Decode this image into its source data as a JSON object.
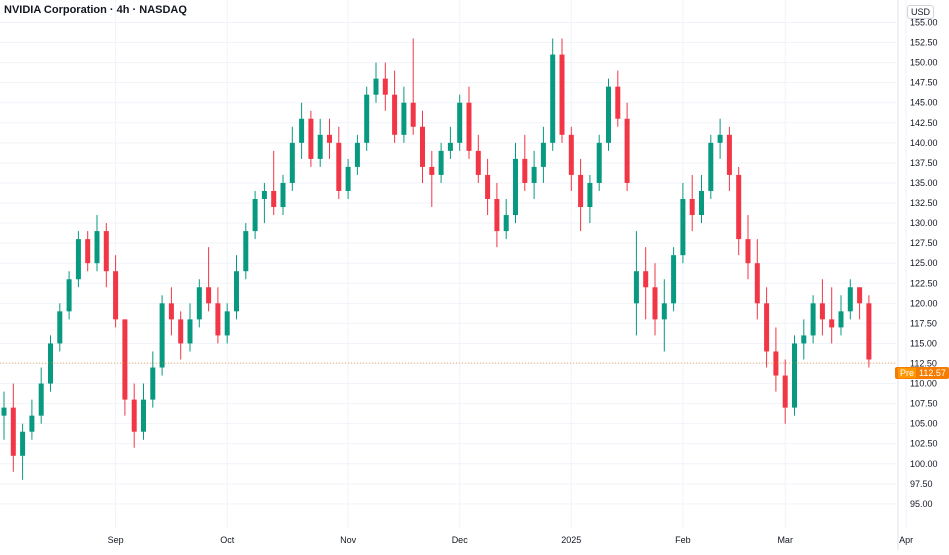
{
  "header": {
    "title": "NVIDIA Corporation · 4h · NASDAQ",
    "currency": "USD"
  },
  "last_price": {
    "session": "Pre",
    "value": "112.57",
    "color": "#f57c00"
  },
  "colors": {
    "up": "#089981",
    "down": "#f23645",
    "grid": "#f0f3fa",
    "axis_text": "#131722"
  },
  "chart_data": {
    "type": "candlestick",
    "title": "NVIDIA Corporation · 4h · NASDAQ",
    "y_axis": {
      "unit": "USD",
      "range": [
        92.0,
        157.8
      ],
      "ticks": [
        "95.00",
        "97.50",
        "100.00",
        "102.50",
        "105.00",
        "107.50",
        "110.00",
        "112.50",
        "115.00",
        "117.50",
        "120.00",
        "122.50",
        "125.00",
        "127.50",
        "130.00",
        "132.50",
        "135.00",
        "137.50",
        "140.00",
        "142.50",
        "145.00",
        "147.50",
        "150.00",
        "152.50",
        "155.00"
      ]
    },
    "x_axis": {
      "ticks": [
        {
          "label": "Sep",
          "index": 12
        },
        {
          "label": "Oct",
          "index": 24
        },
        {
          "label": "Nov",
          "index": 37
        },
        {
          "label": "Dec",
          "index": 49
        },
        {
          "label": "2025",
          "index": 61
        },
        {
          "label": "Feb",
          "index": 73
        },
        {
          "label": "Mar",
          "index": 84
        },
        {
          "label": "Apr",
          "index": 97
        }
      ]
    },
    "grid": true,
    "candles": [
      [
        106,
        109,
        103,
        107
      ],
      [
        107,
        110,
        99,
        101
      ],
      [
        101,
        105,
        98,
        104
      ],
      [
        104,
        108,
        103,
        106
      ],
      [
        106,
        112,
        105,
        110
      ],
      [
        110,
        116,
        109,
        115
      ],
      [
        115,
        120,
        114,
        119
      ],
      [
        119,
        124,
        118,
        123
      ],
      [
        123,
        129,
        122,
        128
      ],
      [
        128,
        129,
        124,
        125
      ],
      [
        125,
        131,
        124,
        129
      ],
      [
        129,
        130,
        122,
        124
      ],
      [
        124,
        126,
        117,
        118
      ],
      [
        118,
        118,
        106,
        108
      ],
      [
        108,
        110,
        102,
        104
      ],
      [
        104,
        110,
        103,
        108
      ],
      [
        108,
        114,
        107,
        112
      ],
      [
        112,
        121,
        111,
        120
      ],
      [
        120,
        122,
        116,
        118
      ],
      [
        118,
        119,
        113,
        115
      ],
      [
        115,
        120,
        114,
        118
      ],
      [
        118,
        123,
        117,
        122
      ],
      [
        122,
        127,
        119,
        120
      ],
      [
        120,
        122,
        115,
        116
      ],
      [
        116,
        120,
        115,
        119
      ],
      [
        119,
        126,
        118,
        124
      ],
      [
        124,
        130,
        123,
        129
      ],
      [
        129,
        134,
        128,
        133
      ],
      [
        133,
        135,
        130,
        134
      ],
      [
        134,
        139,
        131,
        132
      ],
      [
        132,
        136,
        131,
        135
      ],
      [
        135,
        142,
        134,
        140
      ],
      [
        140,
        145,
        138,
        143
      ],
      [
        143,
        144,
        137,
        138
      ],
      [
        138,
        143,
        137,
        141
      ],
      [
        141,
        143,
        138,
        140
      ],
      [
        140,
        142,
        133,
        134
      ],
      [
        134,
        138,
        133,
        137
      ],
      [
        137,
        141,
        136,
        140
      ],
      [
        140,
        147,
        139,
        146
      ],
      [
        146,
        150,
        145,
        148
      ],
      [
        148,
        150,
        144,
        146
      ],
      [
        146,
        149,
        140,
        141
      ],
      [
        141,
        147,
        140,
        145
      ],
      [
        145,
        153,
        141,
        142
      ],
      [
        142,
        144,
        135,
        137
      ],
      [
        137,
        139,
        132,
        136
      ],
      [
        136,
        140,
        135,
        139
      ],
      [
        139,
        142,
        138,
        140
      ],
      [
        140,
        146,
        139,
        145
      ],
      [
        145,
        147,
        138,
        139
      ],
      [
        139,
        141,
        135,
        136
      ],
      [
        136,
        138,
        131,
        133
      ],
      [
        133,
        135,
        127,
        129
      ],
      [
        129,
        133,
        128,
        131
      ],
      [
        131,
        140,
        130,
        138
      ],
      [
        138,
        141,
        134,
        135
      ],
      [
        135,
        139,
        133,
        137
      ],
      [
        137,
        142,
        135,
        140
      ],
      [
        140,
        153,
        139,
        151
      ],
      [
        151,
        153,
        140,
        141
      ],
      [
        141,
        142,
        134,
        136
      ],
      [
        136,
        138,
        129,
        132
      ],
      [
        132,
        136,
        130,
        135
      ],
      [
        135,
        141,
        134,
        140
      ],
      [
        140,
        148,
        139,
        147
      ],
      [
        147,
        149,
        142,
        143
      ],
      [
        143,
        145,
        134,
        135
      ],
      [
        120,
        129,
        116,
        124
      ],
      [
        124,
        127,
        118,
        122
      ],
      [
        122,
        125,
        116,
        118
      ],
      [
        118,
        123,
        114,
        120
      ],
      [
        120,
        127,
        119,
        126
      ],
      [
        126,
        135,
        125,
        133
      ],
      [
        133,
        136,
        129,
        131
      ],
      [
        131,
        136,
        130,
        134
      ],
      [
        134,
        141,
        133,
        140
      ],
      [
        140,
        143,
        138,
        141
      ],
      [
        141,
        142,
        134,
        136
      ],
      [
        136,
        137,
        126,
        128
      ],
      [
        128,
        131,
        123,
        125
      ],
      [
        125,
        128,
        118,
        120
      ],
      [
        120,
        122,
        112,
        114
      ],
      [
        114,
        117,
        109,
        111
      ],
      [
        111,
        113,
        105,
        107
      ],
      [
        107,
        116,
        106,
        115
      ],
      [
        115,
        118,
        113,
        116
      ],
      [
        116,
        121,
        115,
        120
      ],
      [
        120,
        123,
        116,
        118
      ],
      [
        118,
        122,
        115,
        117
      ],
      [
        117,
        121,
        116,
        119
      ],
      [
        119,
        123,
        118,
        122
      ],
      [
        122,
        122,
        118,
        120
      ],
      [
        120,
        121,
        112,
        113
      ]
    ]
  }
}
